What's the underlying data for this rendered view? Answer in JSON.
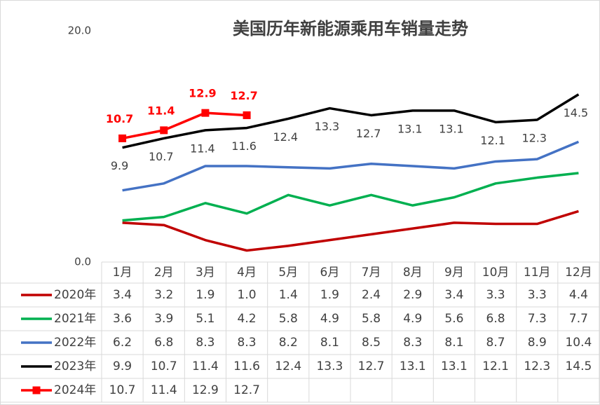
{
  "chart_data": {
    "type": "line",
    "title": "美国历年新能源乘用车销量走势",
    "categories": [
      "1月",
      "2月",
      "3月",
      "4月",
      "5月",
      "6月",
      "7月",
      "8月",
      "9月",
      "10月",
      "11月",
      "12月"
    ],
    "ylim": [
      0,
      20
    ],
    "yticks": [
      {
        "value": 0,
        "label": "0.0"
      },
      {
        "value": 20,
        "label": "20.0"
      }
    ],
    "series": [
      {
        "name": "2020年",
        "color": "#c00000",
        "values": [
          3.4,
          3.2,
          1.9,
          1.0,
          1.4,
          1.9,
          2.4,
          2.9,
          3.4,
          3.3,
          3.3,
          4.4
        ],
        "value_labels": [
          "3.4",
          "3.2",
          "1.9",
          "1.0",
          "1.4",
          "1.9",
          "2.4",
          "2.9",
          "3.4",
          "3.3",
          "3.3",
          "4.4"
        ]
      },
      {
        "name": "2021年",
        "color": "#00b050",
        "values": [
          3.6,
          3.9,
          5.1,
          4.2,
          5.8,
          4.9,
          5.8,
          4.9,
          5.6,
          6.8,
          7.3,
          7.7
        ]
      },
      {
        "name": "2022年",
        "color": "#4472c4",
        "values": [
          6.2,
          6.8,
          8.3,
          8.3,
          8.2,
          8.1,
          8.5,
          8.3,
          8.1,
          8.7,
          8.9,
          10.4
        ]
      },
      {
        "name": "2023年",
        "color": "#000000",
        "values": [
          9.9,
          10.7,
          11.4,
          11.6,
          12.4,
          13.3,
          12.7,
          13.1,
          13.1,
          12.1,
          12.3,
          14.5
        ],
        "show_labels": true,
        "label_position": "below"
      },
      {
        "name": "2024年",
        "color": "#ff0000",
        "values": [
          10.7,
          11.4,
          12.9,
          12.7,
          null,
          null,
          null,
          null,
          null,
          null,
          null,
          null
        ],
        "show_labels": true,
        "label_position": "above",
        "marker": "square"
      }
    ]
  }
}
